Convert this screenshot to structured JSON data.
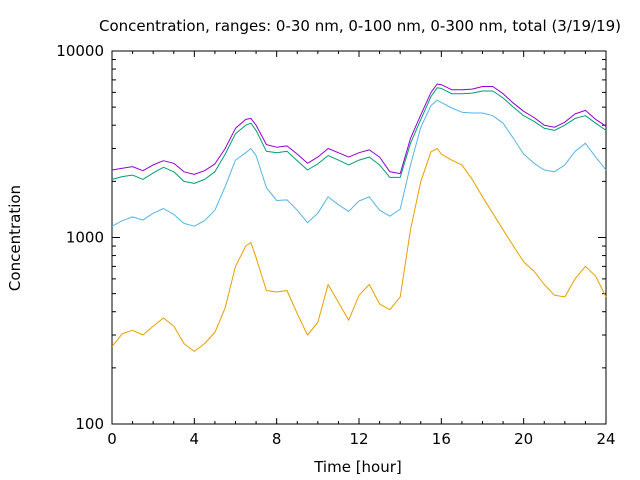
{
  "chart_data": {
    "type": "line",
    "title": "Concentration, ranges: 0-30 nm, 0-100 nm, 0-300 nm, total (3/19/19)",
    "xlabel": "Time [hour]",
    "ylabel": "Concentration",
    "xlim": [
      0,
      24
    ],
    "ylim": [
      100,
      10000
    ],
    "yscale": "log",
    "x_ticks": [
      0,
      4,
      8,
      12,
      16,
      20,
      24
    ],
    "y_ticks": [
      100,
      1000,
      10000
    ],
    "y_tick_labels": [
      "100",
      "1000",
      "10000"
    ],
    "grid": false,
    "legend": "none",
    "x": [
      0,
      0.5,
      1,
      1.5,
      2,
      2.5,
      3,
      3.5,
      4,
      4.5,
      5,
      5.5,
      6,
      6.5,
      6.75,
      7,
      7.5,
      8,
      8.5,
      9,
      9.5,
      10,
      10.5,
      11,
      11.5,
      12,
      12.5,
      13,
      13.5,
      14,
      14.5,
      15,
      15.5,
      15.8,
      16,
      16.5,
      17,
      17.5,
      18,
      18.5,
      19,
      19.5,
      20,
      20.5,
      21,
      21.5,
      22,
      22.5,
      23,
      23.5,
      24
    ],
    "series": [
      {
        "color": "#e69f00",
        "values": [
          260,
          305,
          318,
          300,
          335,
          370,
          335,
          270,
          245,
          270,
          310,
          420,
          700,
          900,
          940,
          780,
          520,
          510,
          520,
          390,
          300,
          350,
          560,
          450,
          360,
          490,
          560,
          440,
          410,
          480,
          1100,
          2000,
          2880,
          3000,
          2800,
          2600,
          2450,
          2050,
          1650,
          1350,
          1100,
          900,
          740,
          660,
          560,
          490,
          480,
          600,
          700,
          620,
          480
        ]
      },
      {
        "color": "#56b4e9",
        "values": [
          1150,
          1230,
          1290,
          1240,
          1350,
          1430,
          1330,
          1190,
          1150,
          1230,
          1400,
          1880,
          2600,
          2850,
          3000,
          2750,
          1850,
          1580,
          1590,
          1400,
          1200,
          1350,
          1650,
          1500,
          1380,
          1570,
          1650,
          1400,
          1300,
          1420,
          2450,
          3900,
          5100,
          5450,
          5300,
          4950,
          4700,
          4650,
          4650,
          4500,
          4100,
          3400,
          2800,
          2500,
          2300,
          2250,
          2450,
          2900,
          3200,
          2700,
          2300
        ]
      },
      {
        "color": "#009e73",
        "values": [
          2050,
          2120,
          2160,
          2050,
          2220,
          2380,
          2250,
          2000,
          1950,
          2050,
          2250,
          2800,
          3600,
          4000,
          4100,
          3750,
          2900,
          2850,
          2900,
          2580,
          2300,
          2480,
          2750,
          2600,
          2450,
          2600,
          2700,
          2450,
          2100,
          2100,
          3200,
          4300,
          5700,
          6350,
          6300,
          5900,
          5900,
          5950,
          6100,
          6100,
          5600,
          5000,
          4500,
          4200,
          3850,
          3750,
          4000,
          4350,
          4500,
          4100,
          3750
        ]
      },
      {
        "color": "#9400d3",
        "values": [
          2300,
          2350,
          2400,
          2280,
          2450,
          2580,
          2500,
          2250,
          2180,
          2280,
          2480,
          3000,
          3850,
          4300,
          4350,
          4000,
          3150,
          3050,
          3100,
          2800,
          2500,
          2700,
          3000,
          2850,
          2700,
          2850,
          2950,
          2700,
          2250,
          2200,
          3400,
          4550,
          6000,
          6650,
          6600,
          6200,
          6200,
          6250,
          6450,
          6450,
          5900,
          5250,
          4750,
          4400,
          4000,
          3900,
          4150,
          4600,
          4800,
          4300,
          3950
        ]
      }
    ]
  }
}
